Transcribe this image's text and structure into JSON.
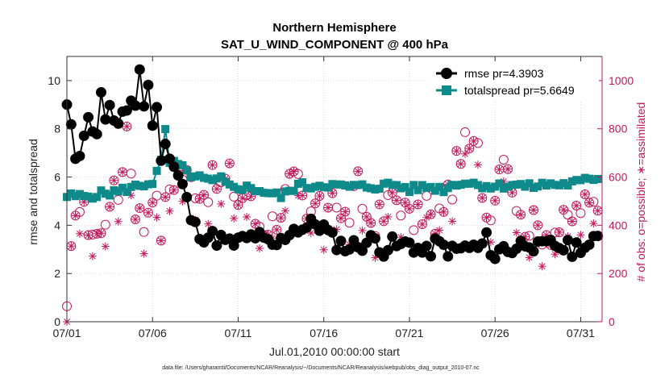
{
  "chart_data": {
    "type": "line",
    "title": "Northern Hemisphere",
    "subtitle": "SAT_U_WIND_COMPONENT @ 400 hPa",
    "xlabel": "Jul.01,2010 00:00:00 start",
    "ylabel_left": "rmse and totalspread",
    "ylabel_right": "# of obs: o=possible; ∗=assimilated",
    "footnote": "data file: /Users/gharamti/Documents/NCAR/Reanalysis/~/Documents/NCAR/Reanalysis/webpub/obs_diag_output_2010-07.nc",
    "xlim": [
      0,
      31.25
    ],
    "ylim_left": [
      0,
      11
    ],
    "ylim_right": [
      0,
      1100
    ],
    "x_ticks": [
      {
        "x": 0,
        "label": "07/01"
      },
      {
        "x": 5,
        "label": "07/06"
      },
      {
        "x": 10,
        "label": "07/11"
      },
      {
        "x": 15,
        "label": "07/16"
      },
      {
        "x": 20,
        "label": "07/21"
      },
      {
        "x": 25,
        "label": "07/26"
      },
      {
        "x": 30,
        "label": "07/31"
      }
    ],
    "y_ticks_left": [
      "0",
      "2",
      "4",
      "6",
      "8",
      "10"
    ],
    "y_ticks_right": [
      "0",
      "200",
      "400",
      "600",
      "800",
      "1000"
    ],
    "colors": {
      "rmse": "#000000",
      "spread": "#0e8a8a",
      "obs": "#c2185b"
    },
    "legend": [
      {
        "key": "rmse",
        "label": "rmse pr=4.3903"
      },
      {
        "key": "spread",
        "label": "totalspread pr=5.6649"
      }
    ],
    "series": [
      {
        "name": "rmse",
        "anchors": [
          [
            0,
            8.9
          ],
          [
            0.3,
            7.7
          ],
          [
            0.5,
            6.9
          ],
          [
            0.8,
            7.2
          ],
          [
            1.0,
            7.9
          ],
          [
            1.25,
            8.3
          ],
          [
            1.5,
            8.1
          ],
          [
            1.75,
            7.9
          ],
          [
            2.0,
            9.3
          ],
          [
            2.25,
            8.5
          ],
          [
            2.5,
            8.9
          ],
          [
            2.75,
            8.1
          ],
          [
            3.0,
            7.9
          ],
          [
            3.25,
            8.7
          ],
          [
            3.5,
            8.9
          ],
          [
            3.75,
            9.2
          ],
          [
            4.0,
            9.0
          ],
          [
            4.25,
            10.4
          ],
          [
            4.5,
            9.1
          ],
          [
            4.75,
            9.6
          ],
          [
            5.0,
            8.4
          ],
          [
            5.25,
            8.7
          ],
          [
            5.5,
            7.0
          ],
          [
            5.75,
            7.5
          ],
          [
            6.0,
            6.8
          ],
          [
            6.25,
            6.4
          ],
          [
            6.5,
            6.0
          ],
          [
            6.75,
            5.6
          ],
          [
            7.0,
            5.0
          ],
          [
            7.25,
            4.3
          ],
          [
            7.5,
            3.9
          ],
          [
            8.0,
            3.6
          ],
          [
            8.5,
            3.5
          ],
          [
            9.0,
            3.4
          ],
          [
            9.5,
            3.2
          ],
          [
            10.0,
            3.3
          ],
          [
            10.5,
            3.4
          ],
          [
            11.0,
            3.6
          ],
          [
            11.5,
            3.3
          ],
          [
            12.0,
            3.1
          ],
          [
            12.5,
            3.3
          ],
          [
            13.0,
            3.8
          ],
          [
            13.5,
            3.9
          ],
          [
            14.0,
            3.9
          ],
          [
            14.5,
            4.1
          ],
          [
            15.0,
            3.9
          ],
          [
            15.5,
            3.4
          ],
          [
            16.0,
            3.2
          ],
          [
            16.5,
            3.1
          ],
          [
            17.0,
            3.2
          ],
          [
            17.5,
            3.3
          ],
          [
            18.0,
            3.4
          ],
          [
            18.5,
            3.0
          ],
          [
            19.0,
            3.2
          ],
          [
            19.5,
            3.1
          ],
          [
            20.0,
            3.3
          ],
          [
            20.5,
            3.0
          ],
          [
            21.0,
            2.8
          ],
          [
            21.5,
            3.2
          ],
          [
            22.0,
            3.1
          ],
          [
            22.5,
            2.9
          ],
          [
            23.0,
            3.0
          ],
          [
            23.5,
            3.1
          ],
          [
            24.0,
            3.0
          ],
          [
            24.5,
            3.4
          ],
          [
            25.0,
            2.7
          ],
          [
            25.5,
            3.1
          ],
          [
            26.0,
            3.0
          ],
          [
            26.5,
            3.2
          ],
          [
            27.0,
            3.4
          ],
          [
            27.5,
            3.0
          ],
          [
            28.0,
            3.1
          ],
          [
            28.5,
            3.2
          ],
          [
            29.0,
            3.1
          ],
          [
            29.5,
            3.0
          ],
          [
            30.0,
            3.2
          ],
          [
            30.5,
            3.1
          ],
          [
            31.0,
            3.4
          ]
        ]
      },
      {
        "name": "totalspread",
        "anchors": [
          [
            0,
            5.2
          ],
          [
            1.0,
            5.2
          ],
          [
            2.0,
            5.3
          ],
          [
            3.0,
            5.4
          ],
          [
            4.0,
            5.6
          ],
          [
            5.0,
            5.8
          ],
          [
            5.25,
            6.2
          ],
          [
            5.5,
            6.6
          ],
          [
            5.75,
            7.9
          ],
          [
            6.0,
            6.6
          ],
          [
            6.5,
            6.5
          ],
          [
            7.0,
            6.2
          ],
          [
            7.5,
            6.0
          ],
          [
            8.0,
            5.9
          ],
          [
            8.5,
            5.8
          ],
          [
            9.0,
            5.9
          ],
          [
            9.5,
            5.6
          ],
          [
            10.0,
            5.6
          ],
          [
            11.0,
            5.5
          ],
          [
            12.0,
            5.3
          ],
          [
            12.5,
            5.2
          ],
          [
            13.0,
            5.4
          ],
          [
            13.5,
            5.7
          ],
          [
            14.0,
            5.6
          ],
          [
            15.0,
            5.7
          ],
          [
            16.0,
            5.6
          ],
          [
            17.0,
            5.6
          ],
          [
            18.0,
            5.6
          ],
          [
            19.0,
            5.7
          ],
          [
            20.0,
            5.5
          ],
          [
            21.0,
            5.6
          ],
          [
            22.0,
            5.5
          ],
          [
            23.0,
            5.8
          ],
          [
            24.0,
            5.7
          ],
          [
            25.0,
            5.6
          ],
          [
            26.0,
            5.7
          ],
          [
            27.0,
            5.6
          ],
          [
            28.0,
            5.7
          ],
          [
            29.0,
            5.7
          ],
          [
            30.0,
            5.8
          ],
          [
            30.5,
            5.9
          ],
          [
            31.0,
            6.0
          ]
        ]
      },
      {
        "name": "obs",
        "anchors": [
          [
            0,
            10
          ],
          [
            0.5,
            500
          ],
          [
            1.0,
            440
          ],
          [
            1.5,
            380
          ],
          [
            2.0,
            350
          ],
          [
            2.5,
            530
          ],
          [
            3.0,
            520
          ],
          [
            3.5,
            810
          ],
          [
            4.0,
            480
          ],
          [
            4.5,
            400
          ],
          [
            5.0,
            560
          ],
          [
            5.5,
            380
          ],
          [
            6.0,
            560
          ],
          [
            6.5,
            620
          ],
          [
            7.0,
            600
          ],
          [
            7.5,
            570
          ],
          [
            8.0,
            540
          ],
          [
            8.5,
            580
          ],
          [
            9.0,
            560
          ],
          [
            9.5,
            600
          ],
          [
            10.0,
            500
          ],
          [
            10.5,
            540
          ],
          [
            11.0,
            420
          ],
          [
            11.5,
            400
          ],
          [
            12.0,
            410
          ],
          [
            12.5,
            470
          ],
          [
            13.0,
            570
          ],
          [
            13.5,
            560
          ],
          [
            14.0,
            400
          ],
          [
            14.5,
            490
          ],
          [
            15.0,
            420
          ],
          [
            15.5,
            580
          ],
          [
            16.0,
            410
          ],
          [
            16.5,
            450
          ],
          [
            17.0,
            560
          ],
          [
            17.5,
            430
          ],
          [
            18.0,
            420
          ],
          [
            18.5,
            430
          ],
          [
            19.0,
            530
          ],
          [
            19.5,
            500
          ],
          [
            20.0,
            420
          ],
          [
            20.5,
            420
          ],
          [
            21.0,
            500
          ],
          [
            21.5,
            350
          ],
          [
            22.0,
            500
          ],
          [
            22.5,
            560
          ],
          [
            23.0,
            720
          ],
          [
            23.5,
            720
          ],
          [
            24.0,
            700
          ],
          [
            24.5,
            440
          ],
          [
            25.0,
            540
          ],
          [
            25.5,
            740
          ],
          [
            26.0,
            580
          ],
          [
            26.5,
            410
          ],
          [
            27.0,
            410
          ],
          [
            27.5,
            390
          ],
          [
            28.0,
            380
          ],
          [
            28.5,
            380
          ],
          [
            29.0,
            400
          ],
          [
            29.5,
            430
          ],
          [
            30.0,
            480
          ],
          [
            30.5,
            470
          ],
          [
            31.0,
            500
          ]
        ]
      }
    ]
  }
}
